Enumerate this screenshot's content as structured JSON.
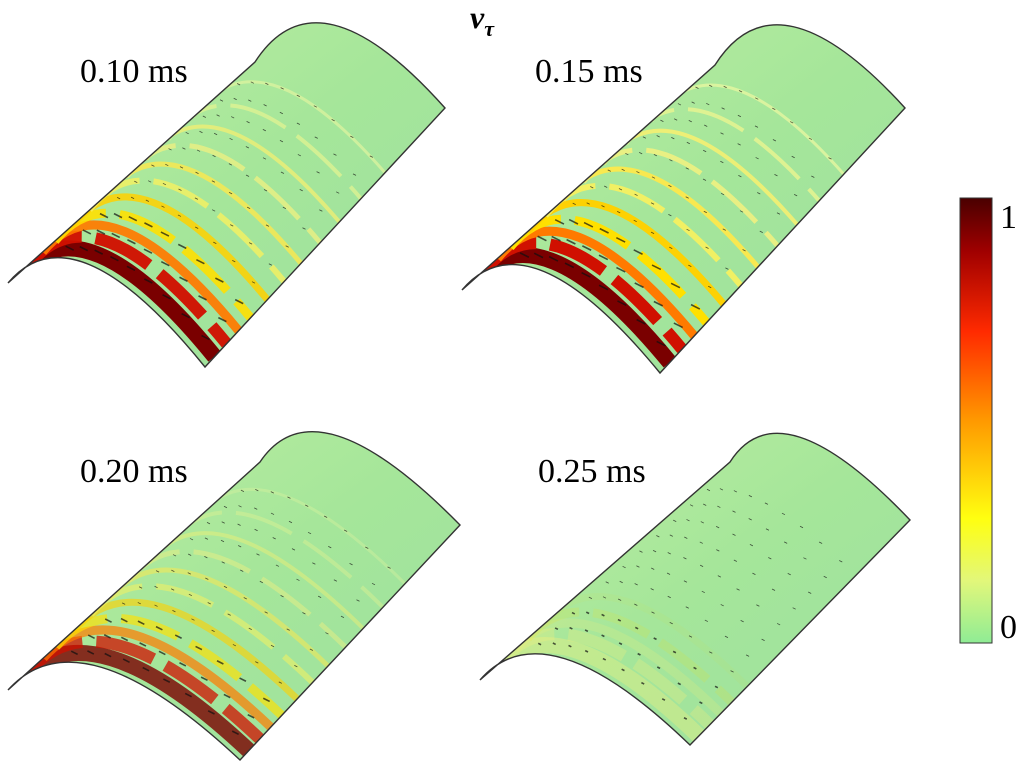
{
  "figure": {
    "title": {
      "symbol": "v",
      "subscript": "τ"
    },
    "panels": [
      {
        "label": "0.10 ms"
      },
      {
        "label": "0.15 ms"
      },
      {
        "label": "0.20 ms"
      },
      {
        "label": "0.25 ms"
      }
    ],
    "colorbar": {
      "top_label": "1",
      "bottom_label": "0"
    }
  }
}
